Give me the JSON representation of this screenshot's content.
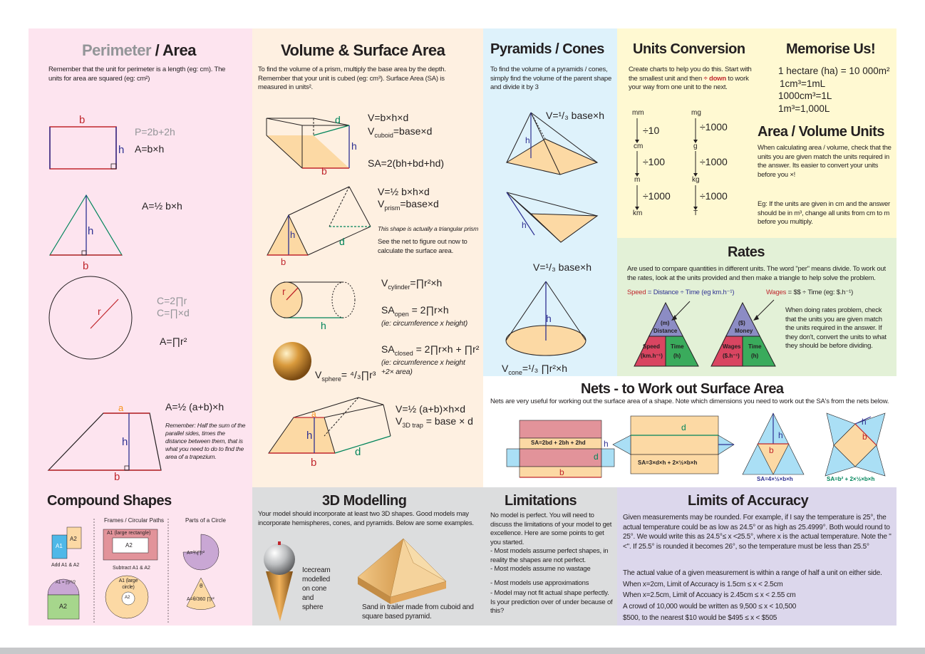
{
  "colors": {
    "pink": "#fde4ef",
    "peach": "#fef0e1",
    "cyan": "#def2fb",
    "yellow": "#fff9d2",
    "green": "#e3f1d7",
    "grey": "#dcddde",
    "lavender": "#dcd7ec",
    "red": "#c0272d",
    "blue": "#2e3192",
    "green_dim": "#00845a"
  },
  "perimeter": {
    "title_grey": "Perimeter",
    "title_rest": " / Area",
    "intro": "Remember that the unit for perimeter is a length (eg: cm).  The units for area are squared (eg: cm²)",
    "rect_b": "b",
    "rect_h": "h",
    "rect_f1": "P=2b+2h",
    "rect_f2": "A=b×h",
    "tri_h": "h",
    "tri_b": "b",
    "tri_f": "A=½ b×h",
    "circ_r": "r",
    "circ_f1": "C=2∏r",
    "circ_f2": "C=∏×d",
    "circ_f3": "A=∏r²",
    "trap_a": "a",
    "trap_h": "h",
    "trap_b": "b",
    "trap_f": "A=½ (a+b)×h",
    "trap_note": "Remember: Half the sum of the parallel sides, times the distance between them, that is what you need to do to find the area of a trapezium."
  },
  "volume": {
    "title": "Volume & Surface Area",
    "intro": "To find the volume of a prism, multiply the base  area by the depth.  Remember that your unit is cubed (eg: cm³).  Surface Area  (SA) is measured in units².",
    "cub_d": "d",
    "cub_h": "h",
    "cub_b": "b",
    "cub_f1": "V=b×h×d",
    "cub_f2": "V",
    "cub_f2_sub": "cuboid",
    "cub_f2_rest": "=base×d",
    "cub_sa": "SA=2(bh+bd+hd)",
    "pr_f1": "V=½ b×h×d",
    "pr_f2": "V",
    "pr_f2_sub": "prism",
    "pr_f2_rest": "=base×d",
    "pr_note1": "This shape is actually a triangular prism",
    "pr_note2": "See the net to figure out now to calculate the surface area.",
    "pr_h": "h",
    "pr_b": "b",
    "pr_d": "d",
    "cyl_r": "r",
    "cyl_h": "h",
    "cyl_f1": "V",
    "cyl_f1_sub": "cylinder",
    "cyl_f1_rest": "=∏r²×h",
    "cyl_f2": "SA",
    "cyl_f2_sub": "open",
    "cyl_f2_rest": " = 2∏r×h",
    "cyl_f2_note": "(ie: circumference x height)",
    "cyl_f3": "SA",
    "cyl_f3_sub": "closed",
    "cyl_f3_rest": " = 2∏r×h + ∏r²",
    "cyl_f3_note": "(ie: circumference x height +2× area)",
    "sph_f": "V",
    "sph_f_sub": "sphere",
    "sph_f_rest": "= ⁴/₃∏r³",
    "trap_f1": "V=½ (a+b)×h×d",
    "trap_f2": "V",
    "trap_f2_sub": "3D trap",
    "trap_f2_rest": " = base × d",
    "trap_a": "a",
    "trap_h": "h",
    "trap_b": "b",
    "trap_d": "d"
  },
  "pyramids": {
    "title": "Pyramids / Cones",
    "intro": "To find the volume of a pyramids / cones, simply find the volume of the parent shape and divide it by 3",
    "f1": "V=¹/₃ base×h",
    "f2": "V=¹/₃ base×h",
    "f3": "V",
    "f3_sub": "cone",
    "f3_rest": "=¹/₃ ∏r²×h",
    "h": "h"
  },
  "units": {
    "title": "Units Conversion",
    "intro_a": "Create charts to help you do this.  Start with the smallest unit and then ",
    "intro_b": "÷ down",
    "intro_c": " to work your way from one unit to the next.",
    "col1": [
      "mm",
      "cm",
      "m",
      "km"
    ],
    "col1_div": [
      "÷10",
      "÷100",
      "÷1000"
    ],
    "col2": [
      "mg",
      "g",
      "kg",
      "T"
    ],
    "col2_div": [
      "÷1000",
      "÷1000",
      "÷1000"
    ]
  },
  "memorise": {
    "title": "Memorise Us!",
    "items": [
      "1 hectare (ha) = 10 000m²",
      "1cm³=1mL",
      "1000cm³=1L",
      "1m³=1,000L"
    ]
  },
  "area_units": {
    "title": "Area / Volume Units",
    "p1": "When calculating area / volume, check that the units you are given match the units required in the answer.  Its easier to convert your units before you ×!",
    "p2": "Eg: If the units are given in cm and the answer should be in m³, change all units from cm to m before you multiply."
  },
  "rates": {
    "title": "Rates",
    "intro": "Are used to compare quantities in different units.  The word \"per\" means divide.  To work out the rates, look at the units provided and then make a triangle to help solve the problem.",
    "speed_lbl": "Speed",
    "speed_rest": " = Distance ÷ Time (eg km.h⁻¹)",
    "wages_lbl": "Wages",
    "wages_rest": " = $$ ÷ Time (eg: $.h⁻¹)",
    "t1_top1": "(m)",
    "t1_top2": "Distance",
    "t1_l1": "Speed",
    "t1_l2": "(km.h⁻¹)",
    "t1_r1": "Time",
    "t1_r2": "(h)",
    "t2_top1": "($)",
    "t2_top2": "Money",
    "t2_l1": "Wages",
    "t2_l2": "($.h⁻¹)",
    "t2_r1": "Time",
    "t2_r2": "(h)",
    "note": "When doing rates problem, check that the units you are given match the units required in the answer. If they don't, convert the units to what they should be before dividing."
  },
  "nets": {
    "title": "Nets - to Work out Surface Area",
    "intro": "Nets are very useful for working out the surface area of a shape. Note which dimensions you need to work out the SA's from the nets below.",
    "n1_sa": "SA=2bd + 2bh + 2hd",
    "n1_b": "b",
    "n1_d": "d",
    "n1_h": "h",
    "n2_d": "d",
    "n2_sa": "SA=3×d×h + 2×½×b×h",
    "n3_h": "h",
    "n3_b": "b",
    "n3_sa": "SA=4×½×b×h",
    "n4_h": "h",
    "n4_b": "b",
    "n4_sa": "SA=b² + 2×½×b×h"
  },
  "compound": {
    "title": "Compound Shapes",
    "col2_head": "Frames / Circular Paths",
    "col3_head": "Parts of a Circle",
    "a1": "A1",
    "a2": "A2",
    "add": "Add A1 & A2",
    "big_rect": "A1 (large rectangle)",
    "small_rect": "A2",
    "sub": "Subtract  A1 & A2",
    "circle_a1": "A1 (large circle)",
    "circle_a2": "A2",
    "semi": "A1 = ∏r²/2",
    "sector1": "A=¾∏r²",
    "sector2": "A=θ/360 ∏r²",
    "theta": "θ"
  },
  "modelling": {
    "title": "3D Modelling",
    "intro": "Your model should incorporate at least two 3D shapes.  Good models may incorporate hemispheres, cones, and pyramids.  Below are some examples.",
    "ice": "Icecream modelled on cone and sphere",
    "sand": "Sand in trailer made from cuboid and square based pyramid."
  },
  "limitations": {
    "title": "Limitations",
    "body": "No model is perfect.  You will need to discuss the limitations of your model to get excellence. Here are some points to get you started.",
    "points": [
      "- Most models assume perfect shapes, in reality the shapes are not perfect.",
      "- Most models assume  no wastage",
      "- Most models use approximations",
      "- Model may not fit actual shape perfectly.  Is your prediction over of under because of this?"
    ]
  },
  "accuracy": {
    "title": "Limits of Accuracy",
    "p1": "Given measurements may be rounded.  For example, if I say the temperature is 25°, the actual temperature could be as low as 24.5° or as high as 25.4999°.  Both would round to 25°.  We would write this as 24.5°≤ x <25.5°, where x is the actual temperature.  Note the \"<\".  If 25.5° is rounded it becomes 26°, so the temperature must be less than 25.5°",
    "p2": "The actual value of a given measurement is within a range of half a unit on either side.",
    "lines": [
      "When x=2cm, Limit of Accuracy is 1.5cm ≤ x < 2.5cm",
      "When x=2.5cm, Limit of Accuacy is 2.45cm ≤ x < 2.55 cm",
      "A crowd of 10,000 would be written as 9,500 ≤ x < 10,500",
      "$500, to the nearest $10 would be $495 ≤ x < $505"
    ]
  }
}
